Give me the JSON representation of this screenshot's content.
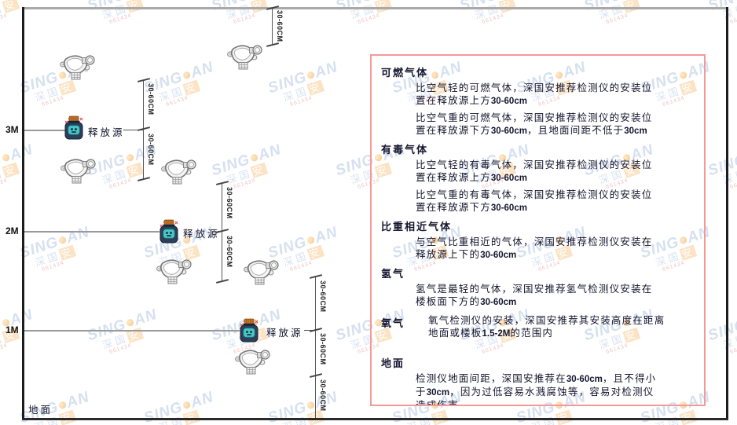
{
  "watermark": {
    "brand_left": "SING",
    "brand_right": "AN",
    "cjk_left": "深国",
    "cjk_last": "安",
    "contact": "661434"
  },
  "diagram": {
    "dim_label": "30-60CM",
    "source_label": "释放源",
    "ground_label": "地面",
    "levels": [
      {
        "label": "3M"
      },
      {
        "label": "2M"
      },
      {
        "label": "1M"
      }
    ]
  },
  "panel": {
    "sections": [
      {
        "heading": "可燃气体",
        "paragraphs": [
          "比空气轻的可燃气体，深国安推荐检测仪的安装位置在释放源上方30-60cm",
          "比空气重的可燃气体，深国安推荐检测仪的安装位置在释放源下方30-60cm，且地面间距不低于30cm"
        ]
      },
      {
        "heading": "有毒气体",
        "paragraphs": [
          "比空气轻的有毒气体，深国安推荐检测仪的安装位置在释放源上方30-60cm",
          "比空气重的有毒气体，深国安推荐检测仪的安装位置在释放源下方30-60cm"
        ]
      },
      {
        "heading": "比重相近气体",
        "paragraphs": [
          "与空气比重相近的气体，深国安推荐检测仪安装在释放源上下的30-60cm"
        ]
      },
      {
        "heading": "氢气",
        "paragraphs": [
          "氢气是最轻的气体，深国安推荐氢气检测仪安装在楼板面下方的30-60cm"
        ]
      },
      {
        "heading": "氧气",
        "inline": true,
        "paragraphs": [
          "氧气检测仪的安装，深国安推荐其安装高度在距离地面或楼板1.5-2M的范围内"
        ]
      },
      {
        "heading": "地面",
        "last": true,
        "paragraphs": [
          "检测仪地面间距，深国安推荐在30-60cm，且不得小于30cm，因为过低容易水溅腐蚀等，容易对检测仪造成伤害"
        ]
      }
    ]
  },
  "colors": {
    "panel_border": "#f49898",
    "watermark_blue": "#80a2d0",
    "logo_orange": "#f09c30",
    "source_body": "#2b3f58",
    "source_cap": "#c9762a",
    "source_face": "#46c8c4",
    "detector_gray": "#f4f4f4",
    "line_dark": "#1c1c1c"
  }
}
